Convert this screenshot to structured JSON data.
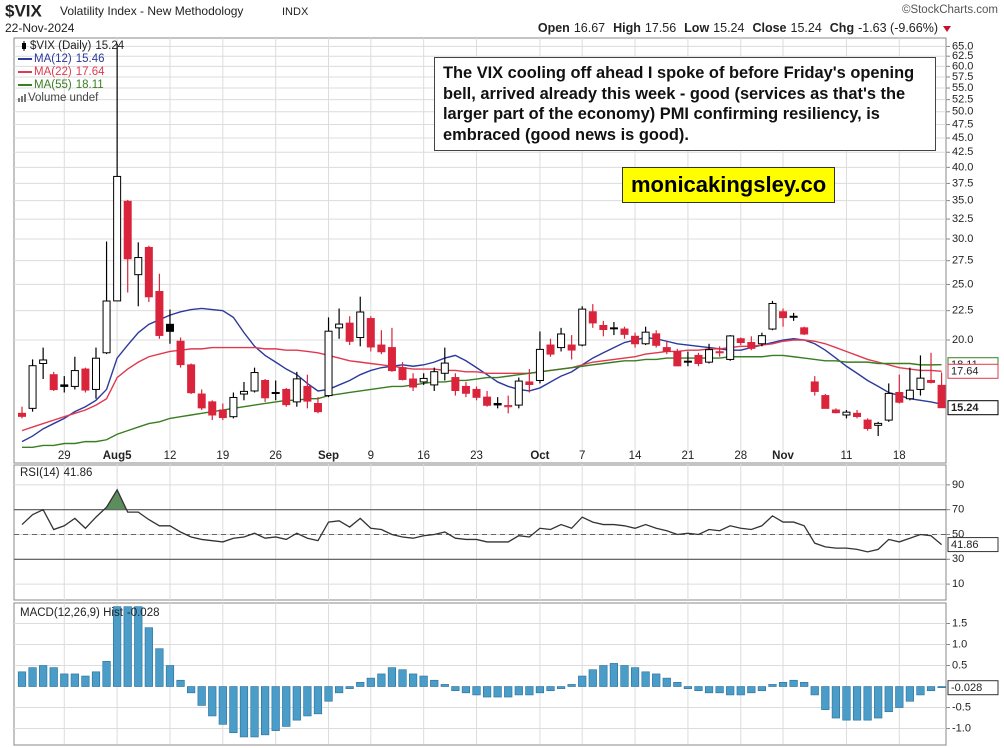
{
  "chart_data": [
    {
      "type": "candlestick",
      "title": "$VIX",
      "subtitle": "Volatility Index - New Methodology",
      "exchange": "INDX",
      "date": "22-Nov-2024",
      "source": "©StockCharts.com",
      "quote_labels": [
        "Open",
        "High",
        "Low",
        "Close",
        "Chg"
      ],
      "change": "-1.63 (-9.66%)",
      "annotations": [
        "The VIX cooling off ahead I spoke of before Friday's opening bell, arrived already this week - good (services as that's the larger part of the economy) PMI confirming resiliency, is embraced (good news is good).",
        "monicakingsley.co"
      ],
      "categories": [
        null,
        null,
        null,
        null,
        "29",
        null,
        null,
        null,
        null,
        "Aug5",
        null,
        null,
        null,
        null,
        "12",
        null,
        null,
        null,
        null,
        "19",
        null,
        null,
        null,
        null,
        "26",
        null,
        null,
        null,
        null,
        "Sep",
        null,
        null,
        null,
        "9",
        null,
        null,
        null,
        null,
        "16",
        null,
        null,
        null,
        null,
        "23",
        null,
        null,
        null,
        null,
        null,
        "Oct",
        null,
        null,
        null,
        "7",
        null,
        null,
        null,
        null,
        "14",
        null,
        null,
        null,
        null,
        "21",
        null,
        null,
        null,
        null,
        "28",
        null,
        null,
        null,
        "Nov",
        null,
        null,
        null,
        null,
        null,
        "11",
        null,
        null,
        null,
        null,
        "18",
        null,
        null,
        null,
        null
      ],
      "candles": {
        "name": "$VIX (Daily)",
        "up_color": "#000000",
        "down_color": "#d9243c",
        "open": [
          14.9,
          15.2,
          18.2,
          17.4,
          16.7,
          16.6,
          17.8,
          16.4,
          19.0,
          23.4,
          34.9,
          26.0,
          29.0,
          24.3,
          21.3,
          19.9,
          18.1,
          16.1,
          15.6,
          15.1,
          14.7,
          16.1,
          16.3,
          17.0,
          16.2,
          16.4,
          15.6,
          16.6,
          15.5,
          16.0,
          21.0,
          21.4,
          20.2,
          21.8,
          19.6,
          19.4,
          17.9,
          17.1,
          16.9,
          16.7,
          17.5,
          17.2,
          16.6,
          16.4,
          15.9,
          15.5,
          15.3,
          15.4,
          16.9,
          17.0,
          19.6,
          19.4,
          19.6,
          19.6,
          22.4,
          21.2,
          21.0,
          20.9,
          20.3,
          19.7,
          20.5,
          19.4,
          19.1,
          18.3,
          18.8,
          18.3,
          19.0,
          18.5,
          20.1,
          19.8,
          19.7,
          20.9,
          22.4,
          22.0,
          21.0,
          16.9,
          16.0,
          15.1,
          14.8,
          14.9,
          14.5,
          14.2,
          14.5,
          16.2,
          15.8,
          16.4,
          17.0,
          16.67
        ],
        "high": [
          15.3,
          18.5,
          19.4,
          17.6,
          17.3,
          18.7,
          17.9,
          19.4,
          29.7,
          65.73,
          35.1,
          29.6,
          29.2,
          26.1,
          22.6,
          20.2,
          18.2,
          16.4,
          15.7,
          15.5,
          16.2,
          16.9,
          17.9,
          17.1,
          17.0,
          16.5,
          17.6,
          17.4,
          15.9,
          21.9,
          22.7,
          22.0,
          23.8,
          22.0,
          20.8,
          21.0,
          18.3,
          17.5,
          17.5,
          17.9,
          19.4,
          17.5,
          16.9,
          16.6,
          16.3,
          15.9,
          16.0,
          17.2,
          17.8,
          20.7,
          20.1,
          21.0,
          20.4,
          22.9,
          23.1,
          21.6,
          21.5,
          21.1,
          20.6,
          21.1,
          20.8,
          19.9,
          19.3,
          19.1,
          19.0,
          19.7,
          19.5,
          20.4,
          20.2,
          20.3,
          20.6,
          23.4,
          22.7,
          22.3,
          21.1,
          17.3,
          16.1,
          15.2,
          15.1,
          15.1,
          14.6,
          14.4,
          16.8,
          17.4,
          17.9,
          18.8,
          19.0,
          17.56
        ],
        "low": [
          14.6,
          15.0,
          17.1,
          16.3,
          16.2,
          16.4,
          16.2,
          15.8,
          18.9,
          23.4,
          24.2,
          22.9,
          23.3,
          20.1,
          19.7,
          17.9,
          16.1,
          15.1,
          14.5,
          14.5,
          14.6,
          15.7,
          16.2,
          15.6,
          15.7,
          15.3,
          15.3,
          15.2,
          14.9,
          15.9,
          20.1,
          19.6,
          19.5,
          19.1,
          18.9,
          17.6,
          17.0,
          16.3,
          16.7,
          16.3,
          17.0,
          16.0,
          15.9,
          15.7,
          15.3,
          15.2,
          14.9,
          15.2,
          16.2,
          16.8,
          18.7,
          19.1,
          18.5,
          19.5,
          21.0,
          20.3,
          20.4,
          20.1,
          19.4,
          19.6,
          19.4,
          18.9,
          18.0,
          18.0,
          18.0,
          18.2,
          18.7,
          18.4,
          19.6,
          19.2,
          19.5,
          20.8,
          21.1,
          21.6,
          20.4,
          16.0,
          15.2,
          14.9,
          14.6,
          14.6,
          13.9,
          13.6,
          14.4,
          15.5,
          15.7,
          16.0,
          16.8,
          15.24
        ],
        "close": [
          14.72,
          18.04,
          18.46,
          16.39,
          16.6,
          17.69,
          16.36,
          18.59,
          23.39,
          38.57,
          27.71,
          27.85,
          23.79,
          20.37,
          20.71,
          18.12,
          16.19,
          15.23,
          14.8,
          14.65,
          15.88,
          16.27,
          17.55,
          15.86,
          16.15,
          15.43,
          17.11,
          15.65,
          15.0,
          20.72,
          21.32,
          19.9,
          22.38,
          19.45,
          19.08,
          17.69,
          17.07,
          16.56,
          17.14,
          17.61,
          18.23,
          16.33,
          16.15,
          15.89,
          15.39,
          15.41,
          15.37,
          16.96,
          16.73,
          19.26,
          18.9,
          20.49,
          19.21,
          22.64,
          21.42,
          20.86,
          20.93,
          20.46,
          19.7,
          20.64,
          19.58,
          19.11,
          18.03,
          18.37,
          18.2,
          19.24,
          19.08,
          20.33,
          19.8,
          19.34,
          20.35,
          23.16,
          21.88,
          21.98,
          20.49,
          16.27,
          15.2,
          14.94,
          14.97,
          14.71,
          14.02,
          14.31,
          16.14,
          15.58,
          16.35,
          17.16,
          16.87,
          15.24
        ]
      },
      "series": [
        {
          "name": "MA(12)",
          "color": "#2b3a9c",
          "values": [
            13.3,
            13.6,
            14.0,
            14.3,
            14.6,
            15.0,
            15.3,
            15.7,
            16.4,
            18.6,
            19.6,
            20.6,
            21.3,
            21.7,
            22.1,
            22.4,
            22.6,
            22.7,
            22.6,
            22.5,
            21.9,
            20.6,
            19.5,
            18.8,
            18.3,
            17.8,
            17.4,
            16.8,
            16.3,
            16.4,
            16.7,
            17.0,
            17.4,
            17.7,
            17.9,
            18.0,
            18.1,
            18.0,
            18.1,
            18.3,
            18.6,
            18.8,
            18.4,
            17.9,
            17.4,
            16.9,
            16.6,
            16.4,
            16.3,
            16.5,
            16.9,
            17.3,
            17.6,
            18.1,
            18.6,
            19.0,
            19.4,
            19.8,
            20.0,
            20.2,
            20.1,
            19.9,
            19.7,
            19.6,
            19.5,
            19.4,
            19.3,
            19.2,
            19.2,
            19.4,
            19.6,
            19.8,
            20.0,
            20.1,
            20.0,
            19.7,
            19.2,
            18.6,
            18.0,
            17.5,
            17.0,
            16.6,
            16.2,
            16.0,
            15.8,
            15.7,
            15.6,
            15.46
          ]
        },
        {
          "name": "MA(22)",
          "color": "#e0394f",
          "values": [
            13.9,
            14.1,
            14.3,
            14.5,
            14.7,
            14.9,
            15.1,
            15.4,
            15.8,
            17.2,
            17.8,
            18.3,
            18.7,
            18.9,
            19.1,
            19.2,
            19.3,
            19.3,
            19.4,
            19.4,
            19.4,
            19.4,
            19.4,
            19.3,
            19.3,
            19.2,
            19.2,
            19.1,
            19.0,
            18.8,
            18.6,
            18.4,
            18.3,
            18.2,
            18.1,
            18.0,
            17.9,
            17.8,
            17.8,
            17.8,
            17.7,
            17.7,
            17.6,
            17.6,
            17.5,
            17.5,
            17.5,
            17.5,
            17.5,
            17.6,
            17.7,
            17.8,
            17.9,
            18.1,
            18.3,
            18.4,
            18.5,
            18.6,
            18.7,
            18.9,
            19.0,
            19.1,
            19.1,
            19.2,
            19.2,
            19.3,
            19.3,
            19.4,
            19.5,
            19.5,
            19.6,
            19.7,
            19.9,
            20.0,
            20.0,
            19.9,
            19.7,
            19.4,
            19.1,
            18.8,
            18.5,
            18.3,
            18.1,
            17.9,
            17.8,
            17.7,
            17.7,
            17.64
          ]
        },
        {
          "name": "MA(55)",
          "color": "#3a7d22",
          "values": [
            13.0,
            13.0,
            13.1,
            13.1,
            13.2,
            13.2,
            13.3,
            13.3,
            13.4,
            13.7,
            13.9,
            14.1,
            14.3,
            14.4,
            14.6,
            14.7,
            14.8,
            14.9,
            15.0,
            15.1,
            15.2,
            15.3,
            15.4,
            15.5,
            15.6,
            15.7,
            15.7,
            15.8,
            15.8,
            16.0,
            16.1,
            16.2,
            16.3,
            16.4,
            16.5,
            16.6,
            16.6,
            16.7,
            16.8,
            16.9,
            16.9,
            17.0,
            17.0,
            17.1,
            17.2,
            17.2,
            17.3,
            17.4,
            17.5,
            17.6,
            17.7,
            17.8,
            17.9,
            18.0,
            18.1,
            18.2,
            18.3,
            18.4,
            18.4,
            18.5,
            18.5,
            18.6,
            18.6,
            18.6,
            18.6,
            18.6,
            18.6,
            18.7,
            18.7,
            18.7,
            18.7,
            18.8,
            18.8,
            18.7,
            18.6,
            18.5,
            18.4,
            18.4,
            18.3,
            18.3,
            18.3,
            18.2,
            18.2,
            18.2,
            18.2,
            18.1,
            18.1,
            18.11
          ]
        }
      ],
      "volume_legend": "Volume undef",
      "log_scale": true,
      "ylim": [
        12.86,
        66.7
      ],
      "grid": true,
      "yticks": [
        {
          "value": 20,
          "label": "20.0"
        },
        22.5,
        {
          "value": 25,
          "label": "25.0"
        },
        27.5,
        {
          "value": 30,
          "label": "30.0"
        },
        32.5,
        {
          "value": 35,
          "label": "35.0"
        },
        37.5,
        {
          "value": 40,
          "label": "40.0"
        },
        42.5,
        {
          "value": 45,
          "label": "45.0"
        },
        47.5,
        {
          "value": 50,
          "label": "50.0"
        },
        52.5,
        {
          "value": 55,
          "label": "55.0"
        },
        57.5,
        {
          "value": 60,
          "label": "60.0"
        },
        62.5,
        {
          "value": 65,
          "label": "65.0"
        }
      ]
    },
    {
      "type": "line",
      "title": "RSI(14)",
      "color": "#333333",
      "fill_color": "#5d8c5d",
      "values": [
        58,
        66,
        70,
        54,
        57,
        63,
        55,
        64,
        72,
        86,
        68,
        68,
        62,
        57,
        57,
        52,
        48,
        46,
        45,
        44,
        47,
        48,
        51,
        47,
        48,
        46,
        51,
        47,
        45,
        60,
        61,
        56,
        63,
        55,
        54,
        50,
        48,
        47,
        49,
        50,
        52,
        47,
        46,
        46,
        44,
        44,
        44,
        49,
        48,
        55,
        54,
        58,
        55,
        64,
        60,
        58,
        58,
        57,
        55,
        58,
        55,
        53,
        50,
        51,
        50,
        54,
        53,
        57,
        55,
        54,
        57,
        65,
        60,
        60,
        57,
        43,
        40,
        39,
        39,
        38,
        36,
        38,
        46,
        44,
        47,
        50,
        49,
        41.86
      ],
      "ylim": [
        -1.2,
        105.2
      ],
      "yticks": [
        10,
        30,
        50,
        70,
        90
      ],
      "levels": [
        30,
        70
      ],
      "midline": 50,
      "grid": true
    },
    {
      "type": "bar",
      "title": "MACD(12,26,9) Hist",
      "color": "#4a9cc9",
      "values": [
        0.35,
        0.45,
        0.5,
        0.45,
        0.3,
        0.3,
        0.25,
        0.35,
        0.6,
        1.9,
        1.9,
        1.9,
        1.4,
        0.9,
        0.5,
        0.15,
        -0.15,
        -0.45,
        -0.7,
        -0.9,
        -1.1,
        -1.2,
        -1.2,
        -1.15,
        -1.05,
        -0.95,
        -0.8,
        -0.7,
        -0.65,
        -0.35,
        -0.15,
        -0.05,
        0.1,
        0.2,
        0.3,
        0.45,
        0.4,
        0.3,
        0.25,
        0.15,
        0.05,
        -0.1,
        -0.15,
        -0.2,
        -0.25,
        -0.25,
        -0.25,
        -0.2,
        -0.2,
        -0.15,
        -0.1,
        -0.05,
        0.05,
        0.25,
        0.4,
        0.5,
        0.55,
        0.5,
        0.45,
        0.35,
        0.3,
        0.2,
        0.1,
        -0.05,
        -0.1,
        -0.15,
        -0.15,
        -0.2,
        -0.2,
        -0.15,
        -0.1,
        0.05,
        0.1,
        0.15,
        0.1,
        -0.2,
        -0.55,
        -0.75,
        -0.8,
        -0.8,
        -0.8,
        -0.75,
        -0.6,
        -0.5,
        -0.35,
        -0.2,
        -0.1,
        -0.028
      ],
      "ylim": [
        -1.32,
        1.94
      ],
      "yticks": [
        {
          "value": -1,
          "label": "-1.0"
        },
        -0.5,
        0.5,
        {
          "value": 1,
          "label": "1.0"
        },
        1.5
      ],
      "grid": true
    }
  ]
}
